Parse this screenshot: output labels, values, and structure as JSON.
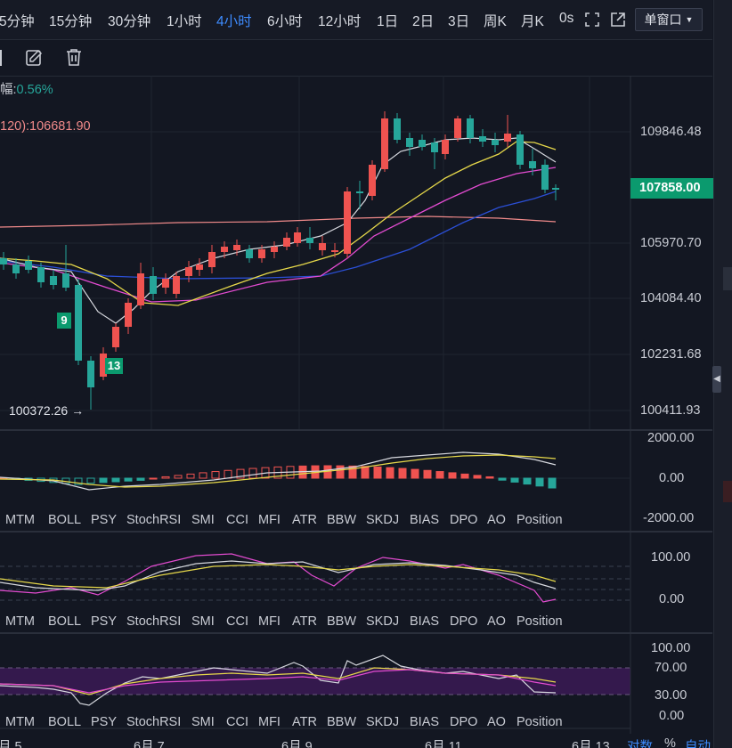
{
  "timeframes": {
    "t5m": "5分钟",
    "t15m": "15分钟",
    "t30m": "30分钟",
    "t1h": "1小时",
    "t4h": "4小时",
    "t6h": "6小时",
    "t12h": "12小时",
    "t1d": "1日",
    "t2d": "2日",
    "t3d": "3日",
    "tw": "周K",
    "tmo": "月K",
    "ts": "0s"
  },
  "window_button": {
    "label": "单窗口"
  },
  "main_chart": {
    "change_label": "幅:",
    "change_value": "0.56%",
    "ma120_label": "120):106681.90",
    "current_price": "107858.00",
    "low_marker": "100372.26 →",
    "marker_9": "9",
    "marker_13": "13",
    "price_ticks": {
      "p1": "109846.48",
      "p2": "105970.70",
      "p3": "104084.40",
      "p4": "102231.68",
      "p5": "100411.93"
    }
  },
  "macd_panel": {
    "ticks": {
      "t1": "2000.00",
      "t2": "0.00",
      "t3": "-2000.00"
    }
  },
  "rsi_panel": {
    "ticks": {
      "t1": "100.00",
      "t2": "0.00"
    }
  },
  "kdj_panel": {
    "ticks": {
      "t1": "100.00",
      "t2": "70.00",
      "t3": "30.00",
      "t4": "0.00"
    }
  },
  "indicator_tabs": {
    "mtm": "MTM",
    "boll": "BOLL",
    "psy": "PSY",
    "stochrsi": "StochRSI",
    "smi": "SMI",
    "cci": "CCI",
    "mfi": "MFI",
    "atr": "ATR",
    "bbw": "BBW",
    "skdj": "SKDJ",
    "bias": "BIAS",
    "dpo": "DPO",
    "ao": "AO",
    "position": "Position"
  },
  "date_axis": {
    "d1": "月 5",
    "d2": "6月 7",
    "d3": "6月 9",
    "d4": "6月 11",
    "d5": "6月 13"
  },
  "scale_options": {
    "log": "对数",
    "pct": "%",
    "auto": "自动"
  },
  "colors": {
    "up": "#ef5350",
    "down": "#26a69a",
    "accent": "#3e8cff",
    "price_tag": "#0b9a6e",
    "ma_white": "#d6d8de",
    "ma_yellow": "#e6d84a",
    "ma_pink": "#e24bd0",
    "ma_blue": "#2b4fd6",
    "ma_salmon": "#f08a8a"
  }
}
